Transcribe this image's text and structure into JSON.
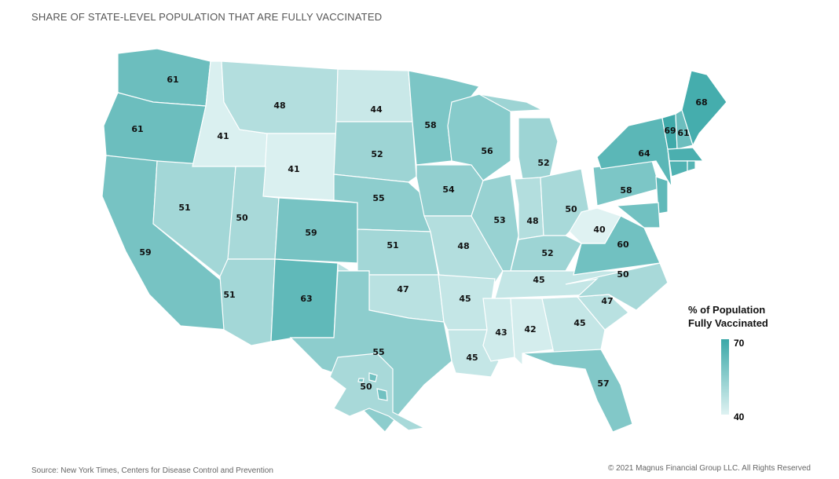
{
  "title": "SHARE OF STATE-LEVEL POPULATION THAT ARE FULLY VACCINATED",
  "source": "Source: New York Times, Centers for Disease Control and Prevention",
  "copyright": "© 2021 Magnus Financial Group LLC. All Rights Reserved",
  "legend": {
    "title_line1": "% of Population",
    "title_line2": "Fully Vaccinated",
    "max": "70",
    "min": "40",
    "color_max": "#3aa8a8",
    "color_min": "#dff2f2"
  },
  "states": [
    {
      "id": "WA",
      "value": 61,
      "label": "61"
    },
    {
      "id": "OR",
      "value": 61,
      "label": "61"
    },
    {
      "id": "CA",
      "value": 59,
      "label": "59"
    },
    {
      "id": "ID",
      "value": 41,
      "label": "41"
    },
    {
      "id": "NV",
      "value": 51,
      "label": "51"
    },
    {
      "id": "MT",
      "value": 48,
      "label": "48"
    },
    {
      "id": "WY",
      "value": 41,
      "label": "41"
    },
    {
      "id": "UT",
      "value": 50,
      "label": "50"
    },
    {
      "id": "AZ",
      "value": 51,
      "label": "51"
    },
    {
      "id": "CO",
      "value": 59,
      "label": "59"
    },
    {
      "id": "NM",
      "value": 63,
      "label": "63"
    },
    {
      "id": "ND",
      "value": 44,
      "label": "44"
    },
    {
      "id": "SD",
      "value": 52,
      "label": "52"
    },
    {
      "id": "NE",
      "value": 55,
      "label": "55"
    },
    {
      "id": "KS",
      "value": 51,
      "label": "51"
    },
    {
      "id": "OK",
      "value": 47,
      "label": "47"
    },
    {
      "id": "TX",
      "value": 55,
      "label": "55"
    },
    {
      "id": "MN",
      "value": 58,
      "label": "58"
    },
    {
      "id": "IA",
      "value": 54,
      "label": "54"
    },
    {
      "id": "MO",
      "value": 48,
      "label": "48"
    },
    {
      "id": "AR",
      "value": 45,
      "label": "45"
    },
    {
      "id": "LA",
      "value": 45,
      "label": "45"
    },
    {
      "id": "WI",
      "value": 56,
      "label": "56"
    },
    {
      "id": "IL",
      "value": 53,
      "label": "53"
    },
    {
      "id": "MI",
      "value": 52,
      "label": "52"
    },
    {
      "id": "IN",
      "value": 48,
      "label": "48"
    },
    {
      "id": "OH",
      "value": 50,
      "label": "50"
    },
    {
      "id": "KY",
      "value": 52,
      "label": "52"
    },
    {
      "id": "TN",
      "value": 45,
      "label": "45"
    },
    {
      "id": "MS",
      "value": 43,
      "label": "43"
    },
    {
      "id": "AL",
      "value": 42,
      "label": "42"
    },
    {
      "id": "GA",
      "value": 45,
      "label": "45"
    },
    {
      "id": "FL",
      "value": 57,
      "label": "57"
    },
    {
      "id": "SC",
      "value": 47,
      "label": "47"
    },
    {
      "id": "NC",
      "value": 50,
      "label": "50"
    },
    {
      "id": "VA",
      "value": 60,
      "label": "60"
    },
    {
      "id": "WV",
      "value": 40,
      "label": "40"
    },
    {
      "id": "PA",
      "value": 58,
      "label": "58"
    },
    {
      "id": "NY",
      "value": 64,
      "label": "64"
    },
    {
      "id": "VT",
      "value": 69,
      "label": "69"
    },
    {
      "id": "NH",
      "value": 61,
      "label": "61"
    },
    {
      "id": "ME",
      "value": 68,
      "label": "68"
    },
    {
      "id": "MA",
      "value": 67
    },
    {
      "id": "CT",
      "value": 66
    },
    {
      "id": "RI",
      "value": 65
    },
    {
      "id": "NJ",
      "value": 63
    },
    {
      "id": "MD",
      "value": 60
    },
    {
      "id": "AK",
      "value": 50,
      "label": "50"
    },
    {
      "id": "HI",
      "value": 60
    }
  ]
}
